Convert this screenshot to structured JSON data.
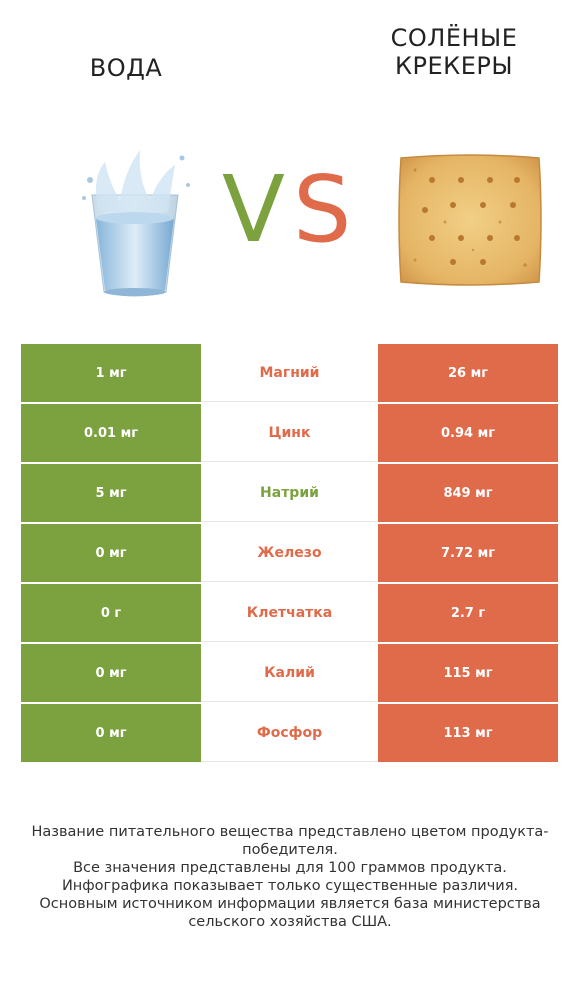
{
  "header": {
    "left_title": "ВОДА",
    "right_title": "СОЛЁНЫЕ\nКРЕКЕРЫ",
    "vs_left": "V",
    "vs_right": "S"
  },
  "colors": {
    "left": "#7ba23f",
    "right": "#e06b4a"
  },
  "icons": {
    "left": "water-glass-icon",
    "right": "saltine-cracker-icon"
  },
  "rows": [
    {
      "left": "1 мг",
      "name": "Магний",
      "right": "26 мг",
      "winner": "right"
    },
    {
      "left": "0.01 мг",
      "name": "Цинк",
      "right": "0.94 мг",
      "winner": "right"
    },
    {
      "left": "5 мг",
      "name": "Натрий",
      "right": "849 мг",
      "winner": "left"
    },
    {
      "left": "0 мг",
      "name": "Железо",
      "right": "7.72 мг",
      "winner": "right"
    },
    {
      "left": "0 г",
      "name": "Клетчатка",
      "right": "2.7 г",
      "winner": "right"
    },
    {
      "left": "0 мг",
      "name": "Калий",
      "right": "115 мг",
      "winner": "right"
    },
    {
      "left": "0 мг",
      "name": "Фосфор",
      "right": "113 мг",
      "winner": "right"
    }
  ],
  "footer": {
    "line1": "Название питательного вещества представлено цветом продукта-победителя.",
    "line2": "Все значения представлены для 100 граммов продукта.",
    "line3": "Инфографика показывает только существенные различия.",
    "line4": "Основным источником информации является база министерства сельского хозяйства США."
  }
}
